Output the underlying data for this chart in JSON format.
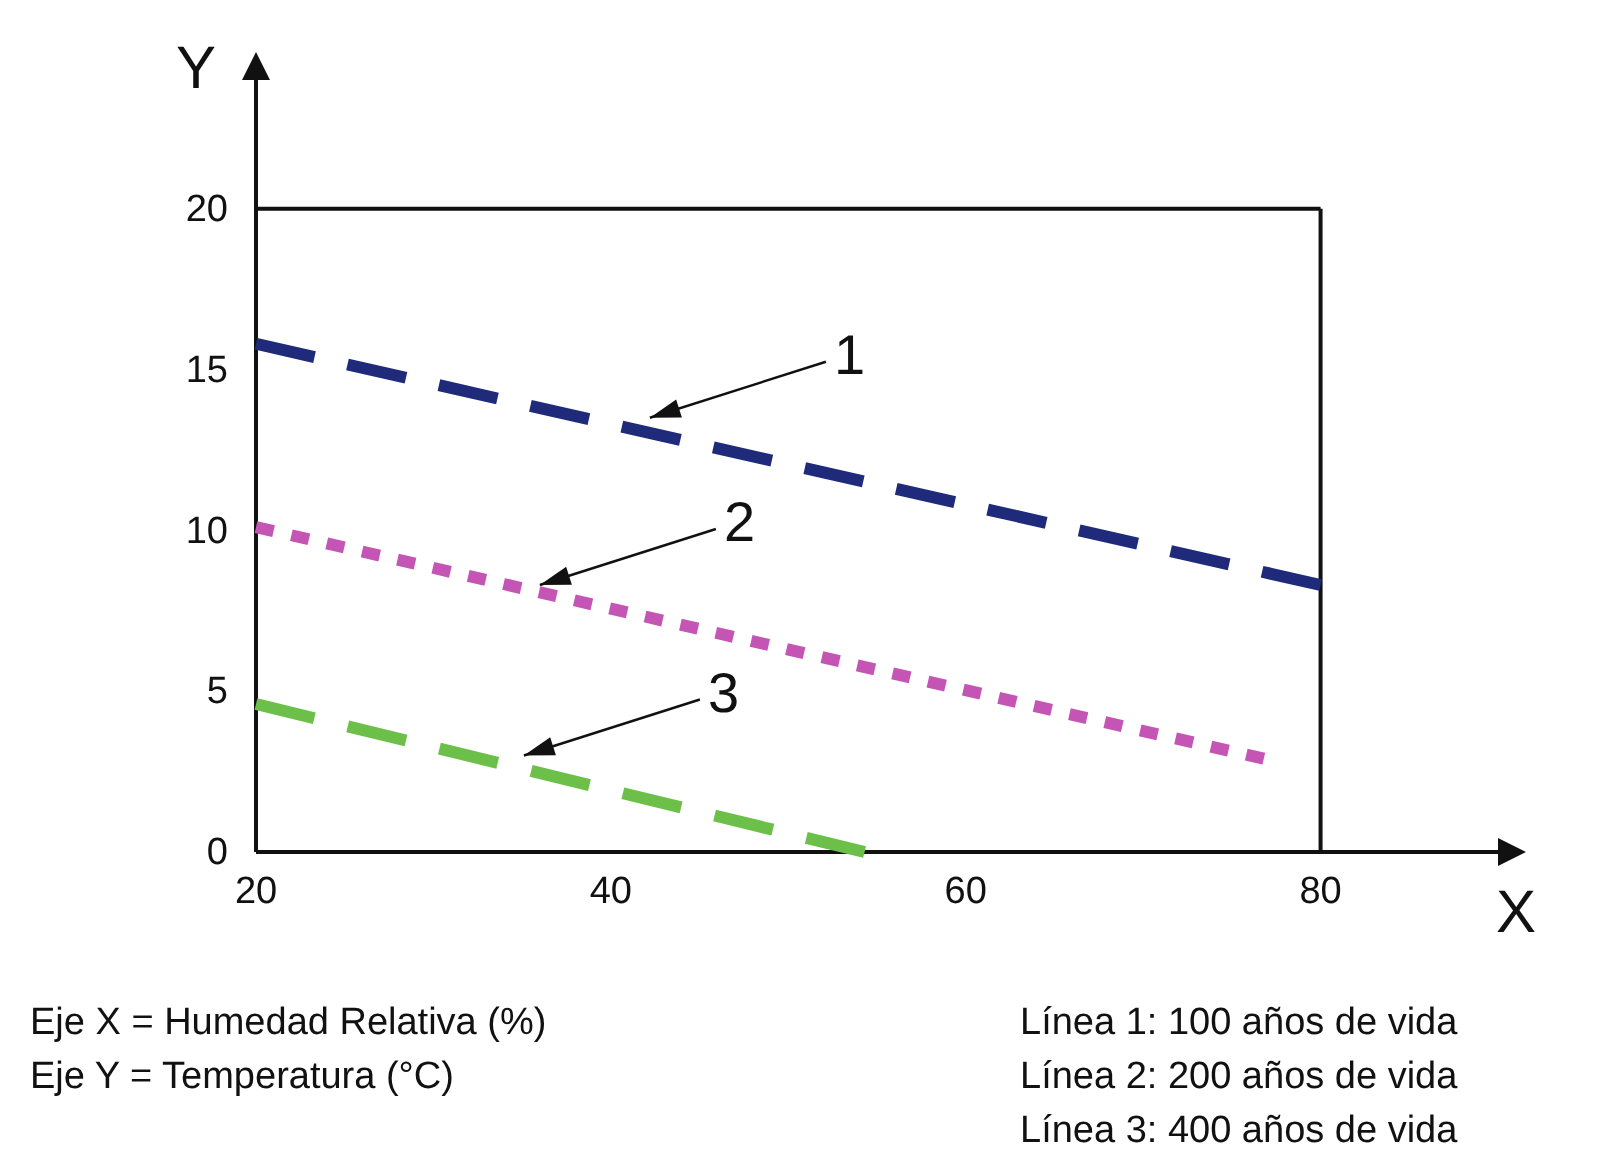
{
  "chart_data": {
    "type": "line",
    "xlabel": "X",
    "ylabel": "Y",
    "ref_lines": [
      {
        "axis": "y",
        "value": 20,
        "color": "#111111"
      },
      {
        "axis": "x",
        "value": 80,
        "color": "#111111"
      }
    ],
    "xlim": [
      20,
      90
    ],
    "ylim": [
      0,
      24
    ],
    "xticks": [
      20,
      40,
      60,
      80
    ],
    "yticks": [
      0,
      5,
      10,
      15,
      20
    ],
    "grid": false,
    "series": [
      {
        "color": "#1f2a7a",
        "line_style": "dashed",
        "x": [
          20,
          80
        ],
        "values": [
          15.8,
          8.3
        ]
      },
      {
        "color": "#c455b4",
        "line_style": "dotted",
        "x": [
          20,
          76.8
        ],
        "values": [
          10.1,
          2.9
        ]
      },
      {
        "color": "#6cc04a",
        "line_style": "dashed",
        "x": [
          20,
          54.3
        ],
        "values": [
          4.6,
          0
        ]
      }
    ],
    "annotations": [
      {
        "text": "1",
        "x": 42.2,
        "y": 13.5
      },
      {
        "text": "2",
        "x": 36,
        "y": 8.3
      },
      {
        "text": "3",
        "x": 35.1,
        "y": 3.0
      },
      "Eje X = Humedad Relativa (%)",
      "Eje Y = Temperatura (°C)",
      "Línea 1: 100 años de vida",
      "Línea 2: 200 años de vida",
      "Línea 3: 400 años de vida"
    ]
  }
}
